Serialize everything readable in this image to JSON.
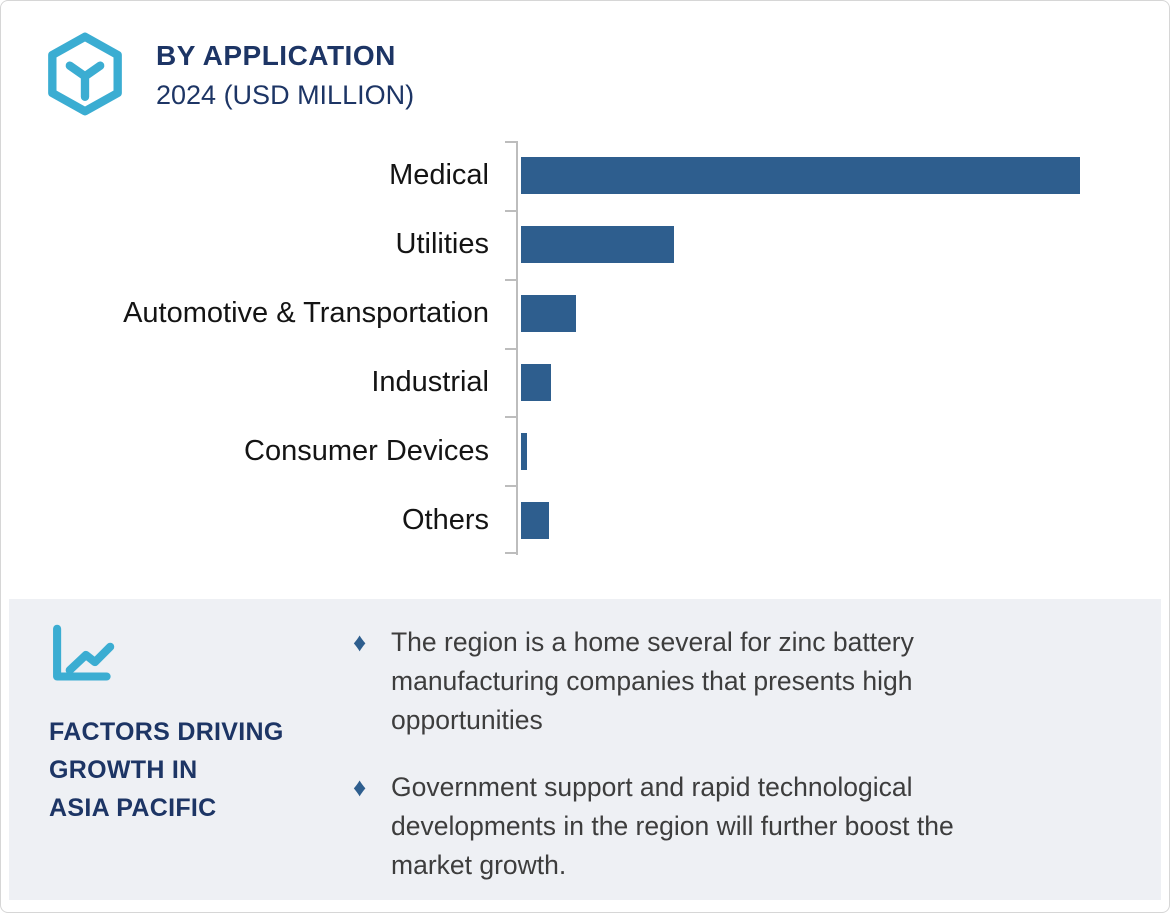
{
  "header": {
    "title": "BY APPLICATION",
    "subtitle": "2024 (USD MILLION)",
    "icon": "hexagon-cube-icon"
  },
  "chart_data": {
    "type": "bar",
    "orientation": "horizontal",
    "title": "BY APPLICATION",
    "subtitle": "2024 (USD MILLION)",
    "categories": [
      "Medical",
      "Utilities",
      "Automotive & Transportation",
      "Industrial",
      "Consumer Devices",
      "Others"
    ],
    "values_pct_of_max": [
      100,
      27.4,
      9.9,
      5.4,
      1.1,
      5.0
    ],
    "value_labels_shown": false,
    "xlabel": "",
    "ylabel": "",
    "legend": "none",
    "gridlines": false,
    "axis_ticks": "at category boundaries",
    "bar_color": "#2e5e8e",
    "axis_color": "#bdbdbd"
  },
  "panel": {
    "icon": "line-chart-icon",
    "heading": "FACTORS DRIVING\nGROWTH IN\nASIA PACIFIC",
    "bullet_marker": "♦",
    "bullets": [
      {
        "text": "The region is a home several for zinc battery\nmanufacturing companies that presents high\nopportunities"
      },
      {
        "text": "Government support and rapid technological\ndevelopments in the region will further boost the\nmarket growth."
      }
    ]
  },
  "colors": {
    "accent_cyan": "#3badd2",
    "navy": "#1d3565",
    "bar_blue": "#2e5e8e",
    "panel_bg": "#eef0f4",
    "axis_gray": "#bdbdbd",
    "text_dark": "#3d3d3d",
    "border_gray": "#d6d6d6"
  }
}
